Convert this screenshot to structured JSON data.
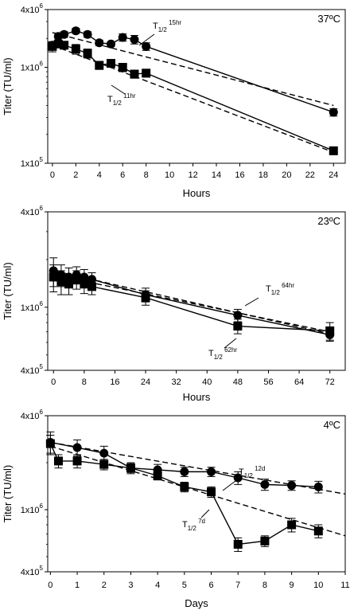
{
  "chart_data": [
    {
      "type": "scatter",
      "title": "37ºC",
      "xlabel": "Hours",
      "ylabel": "Titer (TU/ml)",
      "xlim": [
        -0.4,
        25
      ],
      "xticks": [
        0,
        2,
        4,
        6,
        8,
        10,
        12,
        14,
        16,
        18,
        20,
        22,
        24
      ],
      "yscale": "log",
      "ylim": [
        100000,
        4000000
      ],
      "yticks": [
        {
          "value": 4000000,
          "mant": "4x10",
          "exp": "6"
        },
        {
          "value": 1000000,
          "mant": "1x10",
          "exp": "6"
        },
        {
          "value": 100000,
          "mant": "1x10",
          "exp": "5"
        }
      ],
      "series": [
        {
          "marker": "circle",
          "x": [
            0,
            0.5,
            1,
            2,
            3,
            4,
            5,
            6,
            7,
            8,
            24
          ],
          "y": [
            1700000,
            2100000,
            2200000,
            2400000,
            2200000,
            1800000,
            1750000,
            2050000,
            1950000,
            1650000,
            340000
          ],
          "err": [
            150000,
            180000,
            150000,
            150000,
            150000,
            120000,
            100000,
            180000,
            200000,
            150000,
            30000
          ],
          "fit_x": [
            0,
            8,
            24
          ],
          "fit_y": [
            2300000,
            1650000,
            400000
          ]
        },
        {
          "marker": "square",
          "x": [
            0,
            0.5,
            1,
            2,
            3,
            4,
            5,
            6,
            7,
            8,
            24
          ],
          "y": [
            1650000,
            1750000,
            1700000,
            1550000,
            1400000,
            1050000,
            1100000,
            1000000,
            850000,
            870000,
            135000
          ],
          "err": [
            200000,
            150000,
            150000,
            180000,
            150000,
            100000,
            100000,
            100000,
            80000,
            80000,
            12000
          ],
          "fit_x": [
            0,
            8,
            24
          ],
          "fit_y": [
            1700000,
            850000,
            130000
          ]
        }
      ],
      "annotations": [
        {
          "label": "T",
          "sub": "1/2",
          "value": " 15hr"
        },
        {
          "label": "T",
          "sub": "1/2",
          "value": " 11hr"
        }
      ]
    },
    {
      "type": "scatter",
      "title": "23ºC",
      "xlabel": "Hours",
      "ylabel": "Titer (TU/ml)",
      "xlim": [
        -1.5,
        76
      ],
      "xticks": [
        0,
        8,
        16,
        24,
        32,
        40,
        48,
        56,
        64,
        72
      ],
      "yscale": "log",
      "ylim": [
        400000,
        4000000
      ],
      "yticks": [
        {
          "value": 4000000,
          "mant": "4x10",
          "exp": "6"
        },
        {
          "value": 1000000,
          "mant": "1x10",
          "exp": "6"
        },
        {
          "value": 400000,
          "mant": "4x10",
          "exp": "5"
        }
      ],
      "series": [
        {
          "marker": "circle",
          "x": [
            0,
            2,
            4,
            6,
            8,
            10,
            24,
            48,
            72
          ],
          "y": [
            1700000,
            1600000,
            1550000,
            1600000,
            1550000,
            1500000,
            1200000,
            890000,
            670000
          ],
          "err": [
            350000,
            250000,
            220000,
            200000,
            180000,
            150000,
            120000,
            80000,
            60000
          ],
          "fit_x": [
            0,
            10,
            24,
            48,
            72
          ],
          "fit_y": [
            1700000,
            1550000,
            1200000,
            890000,
            680000
          ]
        },
        {
          "marker": "square",
          "x": [
            0,
            2,
            4,
            6,
            8,
            10,
            24,
            48,
            72
          ],
          "y": [
            1550000,
            1450000,
            1400000,
            1500000,
            1400000,
            1350000,
            1150000,
            760000,
            710000
          ],
          "err": [
            300000,
            250000,
            200000,
            200000,
            180000,
            150000,
            120000,
            80000,
            90000
          ],
          "fit_x": [
            0,
            10,
            24,
            48,
            72
          ],
          "fit_y": [
            1600000,
            1450000,
            1150000,
            780000,
            700000
          ]
        }
      ],
      "annotations": [
        {
          "label": "T",
          "sub": "1/2",
          "value": " 64hr"
        },
        {
          "label": "T",
          "sub": "1/2",
          "value": " 62hr"
        }
      ]
    },
    {
      "type": "scatter",
      "title": "4ºC",
      "xlabel": "Days",
      "ylabel": "Titer (TU/ml)",
      "xlim": [
        -0.1,
        11
      ],
      "xticks": [
        0,
        1,
        2,
        3,
        4,
        5,
        6,
        7,
        8,
        9,
        10,
        11
      ],
      "yscale": "log",
      "ylim": [
        400000,
        4000000
      ],
      "yticks": [
        {
          "value": 4000000,
          "mant": "4x10",
          "exp": "6"
        },
        {
          "value": 1000000,
          "mant": "1x10",
          "exp": "6"
        },
        {
          "value": 400000,
          "mant": "4x10",
          "exp": "5"
        }
      ],
      "series": [
        {
          "marker": "circle",
          "x": [
            0,
            1,
            2,
            3,
            4,
            5,
            6,
            7,
            8,
            9,
            10
          ],
          "y": [
            2700000,
            2500000,
            2300000,
            1850000,
            1800000,
            1750000,
            1750000,
            1600000,
            1450000,
            1430000,
            1400000
          ],
          "err": [
            450000,
            300000,
            250000,
            150000,
            150000,
            120000,
            120000,
            150000,
            120000,
            100000,
            120000
          ],
          "fit_x": [
            0,
            11
          ],
          "fit_y": [
            2700000,
            1260000
          ]
        },
        {
          "marker": "square",
          "x": [
            0,
            0.3,
            1,
            2,
            3,
            4,
            5,
            6,
            7,
            8,
            9,
            10
          ],
          "y": [
            2650000,
            2050000,
            2050000,
            1950000,
            1850000,
            1650000,
            1400000,
            1300000,
            600000,
            630000,
            800000,
            730000
          ],
          "err": [
            350000,
            200000,
            200000,
            150000,
            120000,
            100000,
            100000,
            100000,
            60000,
            50000,
            80000,
            70000
          ],
          "fit_x": [
            0,
            11
          ],
          "fit_y": [
            2550000,
            680000
          ]
        }
      ],
      "annotations": [
        {
          "label": "T",
          "sub": "1/2",
          "value": " 12d"
        },
        {
          "label": "T",
          "sub": "1/2",
          "value": " 7d"
        }
      ]
    }
  ]
}
